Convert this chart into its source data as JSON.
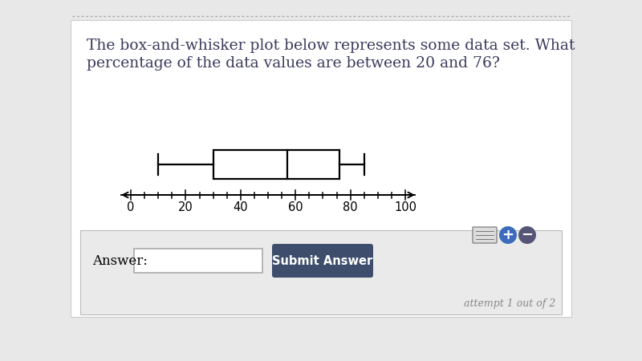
{
  "title_line1": "The box-and-whisker plot below represents some data set. What",
  "title_line2": "percentage of the data values are between 20 and 76?",
  "whisker_min": 10,
  "q1": 30,
  "median": 57,
  "q3": 76,
  "whisker_max": 85,
  "axis_min": 0,
  "axis_max": 100,
  "axis_ticks": [
    0,
    20,
    40,
    60,
    80,
    100
  ],
  "bg_outer": "#e8e8e8",
  "bg_card": "#ffffff",
  "bg_bottom_card": "#eaeaea",
  "box_face": "#ffffff",
  "box_edge": "#000000",
  "text_color": "#3a3a5c",
  "axis_text_color": "#000000",
  "submit_btn_color": "#3d4d6b",
  "submit_text_color": "#ffffff",
  "answer_border": "#cccccc",
  "attempt_color": "#888888",
  "title_fontsize": 13.5,
  "answer_label": "Answer:",
  "submit_label": "Submit Answer",
  "attempt_label": "attempt 1 out of 2",
  "dotted_line_color": "#aaaaaa"
}
